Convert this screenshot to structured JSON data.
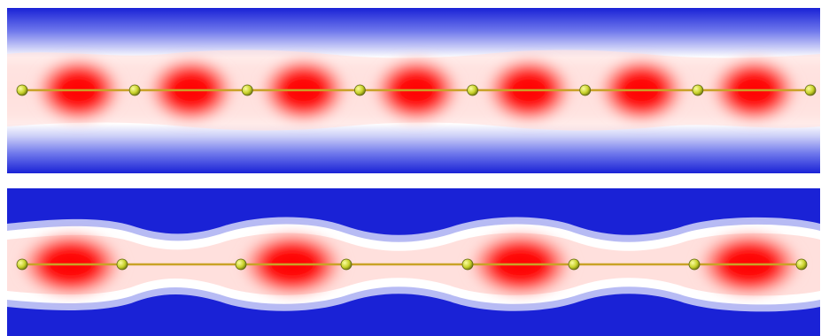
{
  "figure": {
    "panels": [
      {
        "id": "top",
        "atom_count": 8,
        "red_lobe_count": 7,
        "chain_style": "uniform"
      },
      {
        "id": "bottom",
        "atom_count": 8,
        "red_lobe_count": 4,
        "chain_style": "dimerized"
      }
    ],
    "colors": {
      "background_high": "#1a22d6",
      "background_mid": "#ffffff",
      "density_low": "#ffd0cc",
      "density_high": "#ff0000",
      "bond": "#c9a227",
      "atom": "#c8d22a"
    }
  }
}
